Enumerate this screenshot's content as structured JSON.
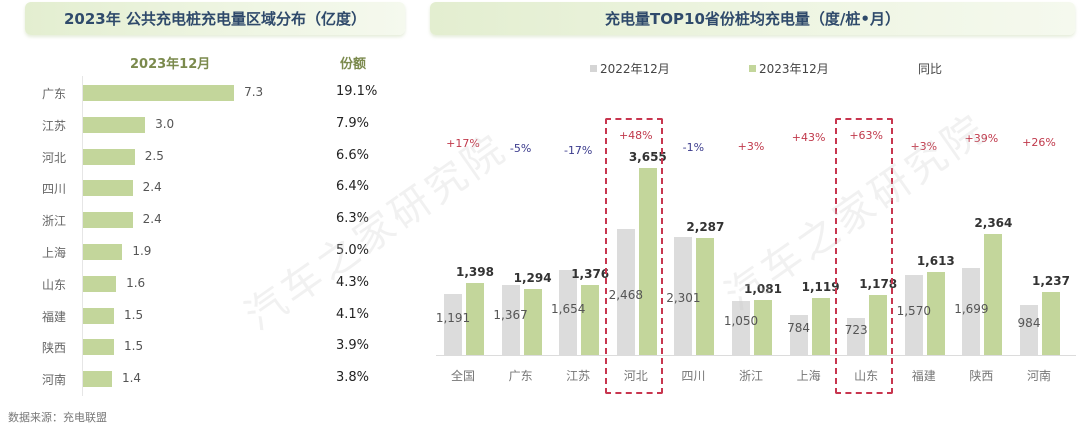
{
  "left_panel": {
    "title": "2023年 公共充电桩充电量区域分布（亿度）",
    "col_month": "2023年12月",
    "col_share": "份额",
    "rows": [
      {
        "region": "广东",
        "value": "7.3",
        "share": "19.1%"
      },
      {
        "region": "江苏",
        "value": "3.0",
        "share": "7.9%"
      },
      {
        "region": "河北",
        "value": "2.5",
        "share": "6.6%"
      },
      {
        "region": "四川",
        "value": "2.4",
        "share": "6.4%"
      },
      {
        "region": "浙江",
        "value": "2.4",
        "share": "6.3%"
      },
      {
        "region": "上海",
        "value": "1.9",
        "share": "5.0%"
      },
      {
        "region": "山东",
        "value": "1.6",
        "share": "4.3%"
      },
      {
        "region": "福建",
        "value": "1.5",
        "share": "4.1%"
      },
      {
        "region": "陕西",
        "value": "1.5",
        "share": "3.9%"
      },
      {
        "region": "河南",
        "value": "1.4",
        "share": "3.8%"
      }
    ],
    "source": "数据来源：充电联盟"
  },
  "right_panel": {
    "title": "充电量TOP10省份桩均充电量（度/桩•月）",
    "legend": {
      "prev": "2022年12月",
      "cur": "2023年12月",
      "yoy": "同比"
    },
    "highlighted": [
      "河北",
      "山东"
    ]
  },
  "watermark": "汽车之家研究院",
  "colors": {
    "bar_green": "#c3d69b",
    "bar_gray": "#dcdcdc",
    "title_text": "#2f4a6b",
    "yoy_positive": "#c0394b",
    "yoy_negative": "#3a3a8c",
    "highlight_box": "#c8364f"
  },
  "chart_data": [
    {
      "type": "bar",
      "orientation": "horizontal",
      "title": "2023年 公共充电桩充电量区域分布（亿度）",
      "categories": [
        "广东",
        "江苏",
        "河北",
        "四川",
        "浙江",
        "上海",
        "山东",
        "福建",
        "陕西",
        "河南"
      ],
      "series": [
        {
          "name": "2023年12月",
          "values": [
            7.3,
            3.0,
            2.5,
            2.4,
            2.4,
            1.9,
            1.6,
            1.5,
            1.5,
            1.4
          ]
        }
      ],
      "share": [
        "19.1%",
        "7.9%",
        "6.6%",
        "6.4%",
        "6.3%",
        "5.0%",
        "4.3%",
        "4.1%",
        "3.9%",
        "3.8%"
      ],
      "xlabel": "",
      "ylabel": "",
      "grid": false
    },
    {
      "type": "bar",
      "title": "充电量TOP10省份桩均充电量（度/桩•月）",
      "categories": [
        "全国",
        "广东",
        "江苏",
        "河北",
        "四川",
        "浙江",
        "上海",
        "山东",
        "福建",
        "陕西",
        "河南"
      ],
      "series": [
        {
          "name": "2022年12月",
          "values": [
            1191,
            1367,
            1654,
            2468,
            2301,
            1050,
            784,
            723,
            1570,
            1699,
            984
          ]
        },
        {
          "name": "2023年12月",
          "values": [
            1398,
            1294,
            1376,
            3655,
            2287,
            1081,
            1119,
            1178,
            1613,
            2364,
            1237
          ]
        }
      ],
      "yoy": [
        "+17%",
        "-5%",
        "-17%",
        "+48%",
        "-1%",
        "+3%",
        "+43%",
        "+63%",
        "+3%",
        "+39%",
        "+26%"
      ],
      "legend": [
        "2022年12月",
        "2023年12月",
        "同比"
      ],
      "legend_position": "top",
      "grid": false,
      "ylim": [
        0,
        4000
      ]
    }
  ]
}
